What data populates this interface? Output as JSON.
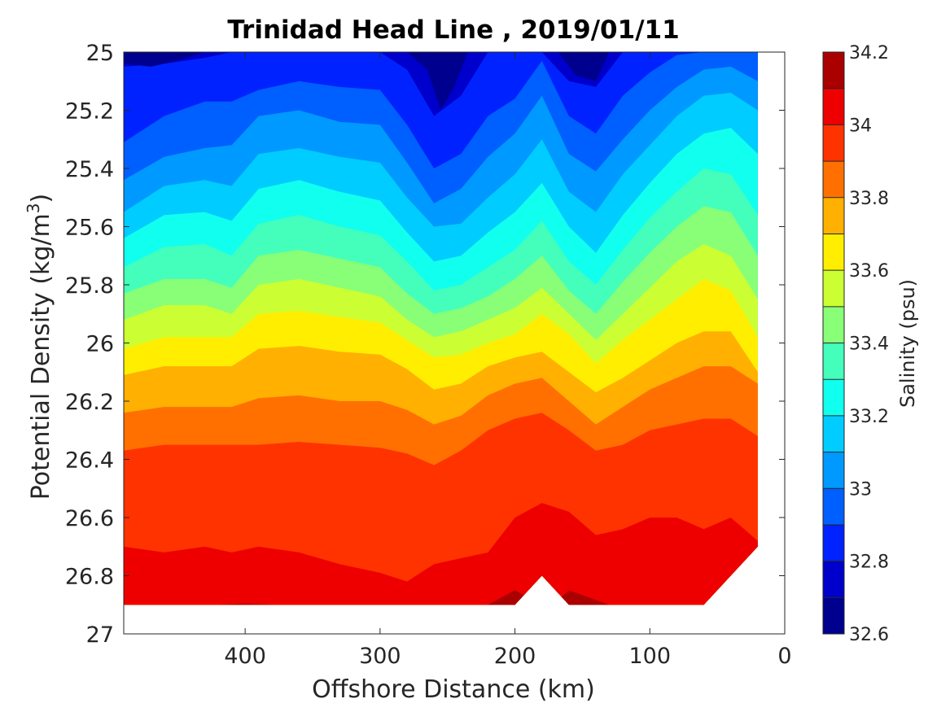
{
  "chart_data": {
    "type": "heatmap",
    "title": "Trinidad Head Line , 2019/01/11",
    "xlabel": "Offshore Distance (km)",
    "ylabel_main": "Potential Density (kg/m",
    "ylabel_sup": "3",
    "ylabel_close": ")",
    "xlim": [
      490,
      0
    ],
    "ylim": [
      25,
      27
    ],
    "x_reversed": true,
    "y_reversed": true,
    "x_ticks": [
      400,
      300,
      200,
      100,
      0
    ],
    "x_tick_labels": [
      "400",
      "300",
      "200",
      "100",
      "0"
    ],
    "y_ticks": [
      25,
      25.2,
      25.4,
      25.6,
      25.8,
      26,
      26.2,
      26.4,
      26.6,
      26.8,
      27
    ],
    "y_tick_labels": [
      "25",
      "25.2",
      "25.4",
      "25.6",
      "25.8",
      "26",
      "26.2",
      "26.4",
      "26.6",
      "26.8",
      "27"
    ],
    "colorbar": {
      "label": "Salinity (psu)",
      "range": [
        32.6,
        34.2
      ],
      "levels": [
        32.6,
        32.7,
        32.8,
        32.9,
        33.0,
        33.1,
        33.2,
        33.3,
        33.4,
        33.5,
        33.6,
        33.7,
        33.8,
        33.9,
        34.0,
        34.1,
        34.2
      ],
      "colors": [
        "#00008f",
        "#0000cc",
        "#0022ff",
        "#005fff",
        "#0099ff",
        "#00ccff",
        "#11ffee",
        "#44ffbb",
        "#88ff77",
        "#ccff33",
        "#ffee00",
        "#ffb000",
        "#ff7000",
        "#ff3300",
        "#ee0000",
        "#aa0000"
      ],
      "tick_values": [
        32.6,
        32.8,
        33.0,
        33.2,
        33.4,
        33.6,
        33.8,
        34.0,
        34.2
      ],
      "tick_labels": [
        "32.6",
        "32.8",
        "33",
        "33.2",
        "33.4",
        "33.6",
        "33.8",
        "34",
        "34.2"
      ]
    },
    "stations_km": [
      490,
      460,
      430,
      410,
      390,
      360,
      330,
      300,
      280,
      260,
      240,
      220,
      200,
      180,
      160,
      140,
      120,
      100,
      80,
      60,
      40,
      20
    ],
    "isopycnal_depth_of_salinity_contours": {
      "32.8": [
        25.05,
        25.04,
        25.02,
        25.0,
        25.0,
        25.0,
        25.0,
        25.0,
        25.06,
        25.22,
        25.15,
        25.0,
        25.0,
        25.0,
        25.1,
        25.12,
        25.0,
        25.0,
        25.0,
        25.0,
        25.0,
        25.0
      ],
      "32.9": [
        25.31,
        25.22,
        25.17,
        25.17,
        25.13,
        25.1,
        25.12,
        25.13,
        25.25,
        25.4,
        25.35,
        25.22,
        25.16,
        25.03,
        25.22,
        25.28,
        25.15,
        25.07,
        25.01,
        25.0,
        25.0,
        25.0
      ],
      "33.0": [
        25.44,
        25.36,
        25.33,
        25.32,
        25.22,
        25.2,
        25.24,
        25.25,
        25.38,
        25.52,
        25.47,
        25.36,
        25.28,
        25.15,
        25.35,
        25.41,
        25.3,
        25.2,
        25.12,
        25.06,
        25.05,
        25.1
      ],
      "33.1": [
        25.55,
        25.46,
        25.44,
        25.46,
        25.35,
        25.33,
        25.36,
        25.38,
        25.5,
        25.6,
        25.59,
        25.5,
        25.42,
        25.3,
        25.48,
        25.55,
        25.42,
        25.32,
        25.22,
        25.15,
        25.14,
        25.2
      ],
      "33.2": [
        25.64,
        25.56,
        25.55,
        25.58,
        25.47,
        25.44,
        25.48,
        25.51,
        25.62,
        25.72,
        25.7,
        25.62,
        25.55,
        25.45,
        25.6,
        25.69,
        25.56,
        25.45,
        25.35,
        25.28,
        25.26,
        25.35
      ],
      "33.3": [
        25.74,
        25.67,
        25.66,
        25.7,
        25.59,
        25.56,
        25.6,
        25.63,
        25.72,
        25.82,
        25.8,
        25.74,
        25.68,
        25.58,
        25.72,
        25.8,
        25.68,
        25.57,
        25.48,
        25.4,
        25.42,
        25.56
      ],
      "33.4": [
        25.83,
        25.78,
        25.78,
        25.81,
        25.7,
        25.68,
        25.71,
        25.74,
        25.83,
        25.9,
        25.88,
        25.84,
        25.78,
        25.7,
        25.82,
        25.9,
        25.79,
        25.69,
        25.6,
        25.53,
        25.55,
        25.7
      ],
      "33.5": [
        25.92,
        25.87,
        25.87,
        25.9,
        25.8,
        25.78,
        25.81,
        25.84,
        25.92,
        25.98,
        25.96,
        25.92,
        25.88,
        25.81,
        25.9,
        25.99,
        25.9,
        25.81,
        25.72,
        25.66,
        25.7,
        25.85
      ],
      "33.6": [
        26.02,
        25.98,
        25.98,
        25.98,
        25.9,
        25.89,
        25.91,
        25.93,
        25.99,
        26.05,
        26.04,
        26.0,
        25.97,
        25.9,
        25.97,
        26.07,
        25.99,
        25.92,
        25.85,
        25.78,
        25.82,
        25.98
      ],
      "33.7": [
        26.11,
        26.08,
        26.08,
        26.08,
        26.02,
        26.01,
        26.03,
        26.04,
        26.09,
        26.16,
        26.14,
        26.08,
        26.05,
        26.03,
        26.1,
        26.17,
        26.12,
        26.06,
        26.0,
        25.96,
        25.96,
        26.1
      ],
      "33.8": [
        26.24,
        26.22,
        26.22,
        26.22,
        26.19,
        26.18,
        26.2,
        26.2,
        26.23,
        26.28,
        26.25,
        26.18,
        26.14,
        26.12,
        26.2,
        26.28,
        26.22,
        26.16,
        26.12,
        26.08,
        26.08,
        26.14
      ],
      "33.9": [
        26.37,
        26.35,
        26.35,
        26.35,
        26.35,
        26.34,
        26.35,
        26.36,
        26.38,
        26.42,
        26.37,
        26.3,
        26.26,
        26.24,
        26.3,
        26.37,
        26.35,
        26.3,
        26.28,
        26.26,
        26.26,
        26.32
      ],
      "34.0": [
        26.7,
        26.72,
        26.7,
        26.72,
        26.7,
        26.72,
        26.76,
        26.79,
        26.82,
        26.76,
        26.74,
        26.72,
        26.6,
        26.55,
        26.58,
        26.66,
        26.64,
        26.6,
        26.6,
        26.64,
        26.6,
        26.68
      ],
      "34.1": [
        26.9,
        26.9,
        26.9,
        26.9,
        26.9,
        26.9,
        26.9,
        26.9,
        26.9,
        26.9,
        26.9,
        26.9,
        26.85,
        26.9,
        26.86,
        26.9,
        26.9,
        26.9,
        26.9,
        26.9,
        26.9,
        26.9
      ]
    },
    "data_bottom_density": [
      26.9,
      26.9,
      26.9,
      26.9,
      26.9,
      26.9,
      26.9,
      26.9,
      26.9,
      26.9,
      26.9,
      26.9,
      26.9,
      26.8,
      26.9,
      26.9,
      26.9,
      26.9,
      26.9,
      26.9,
      26.8,
      26.7
    ],
    "data_right_edge_km": 20,
    "grid": false,
    "legend": "none"
  }
}
